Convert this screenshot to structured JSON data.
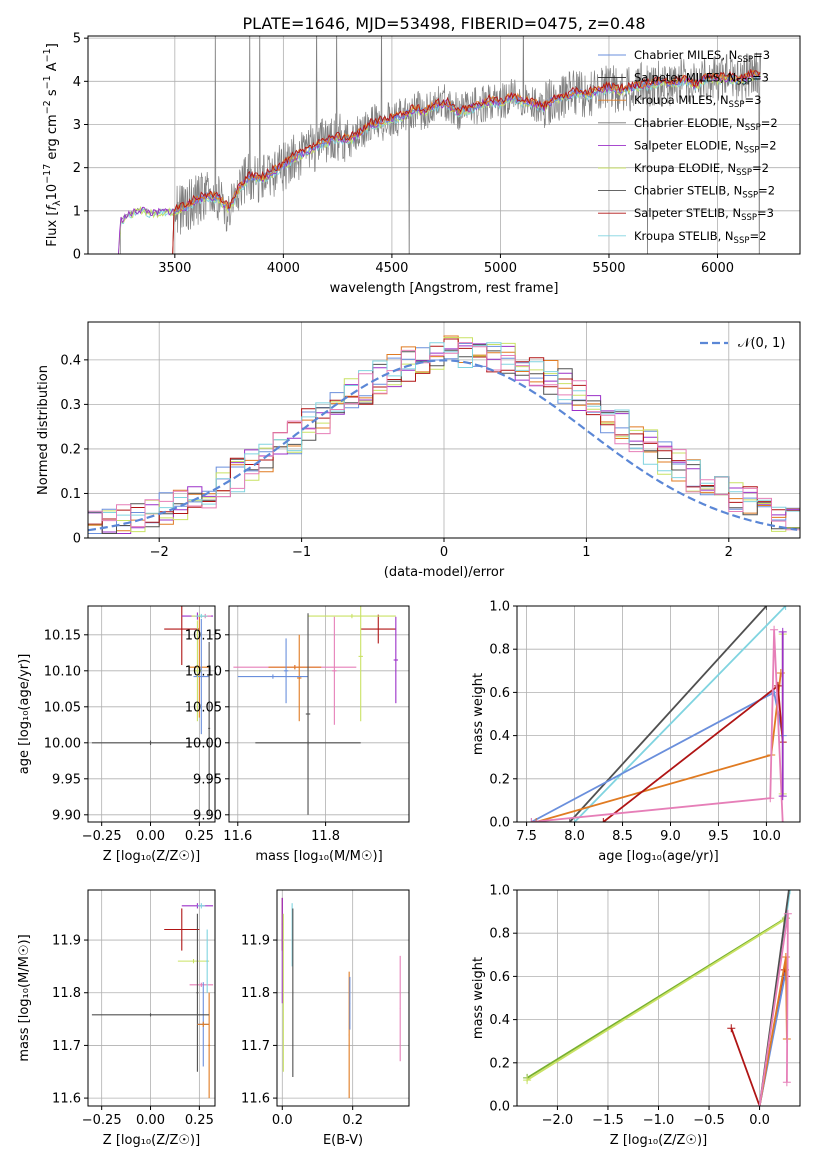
{
  "figure_title": "PLATE=1646, MJD=53498, FIBERID=0475, z=0.48",
  "colors": {
    "Chabrier MILES": "#6a8fdc",
    "Salpeter MILES": "#222222",
    "Kroupa MILES": "#e07b22",
    "Chabrier ELODIE": "#777777",
    "Salpeter ELODIE": "#9b30c8",
    "Kroupa ELODIE": "#c9e264",
    "Chabrier STELIB": "#505050",
    "Salpeter STELIB": "#b01515",
    "Kroupa STELIB": "#80d4e0",
    "pink": "#e67fb8",
    "normal_curve": "#5b87d6",
    "green_line": "#78b030"
  },
  "chart_data": [
    {
      "id": "spectrum",
      "type": "line",
      "title": "PLATE=1646, MJD=53498, FIBERID=0475, z=0.48",
      "xlabel": "wavelength [Angstrom, rest frame]",
      "ylabel_parts": [
        "Flux [",
        "f",
        "λ",
        "10",
        "−17",
        " erg cm",
        "−2",
        " s",
        "−1",
        " A",
        "−1",
        "]"
      ],
      "xlim": [
        3100,
        6380
      ],
      "ylim": [
        0,
        5.05
      ],
      "xticks": [
        3500,
        4000,
        4500,
        5000,
        5500,
        6000
      ],
      "yticks": [
        0,
        1,
        2,
        3,
        4,
        5
      ],
      "legend": [
        {
          "label": "Chabrier MILES, N",
          "sub": "SSP",
          "suffix": "=3",
          "color": "#6a8fdc"
        },
        {
          "label": "Salpeter MILES, N",
          "sub": "SSP",
          "suffix": "=3",
          "color": "#222222"
        },
        {
          "label": "Kroupa MILES, N",
          "sub": "SSP",
          "suffix": "=3",
          "color": "#e07b22"
        },
        {
          "label": "Chabrier ELODIE, N",
          "sub": "SSP",
          "suffix": "=2",
          "color": "#777777"
        },
        {
          "label": "Salpeter ELODIE, N",
          "sub": "SSP",
          "suffix": "=2",
          "color": "#9b30c8"
        },
        {
          "label": "Kroupa ELODIE, N",
          "sub": "SSP",
          "suffix": "=2",
          "color": "#c9e264"
        },
        {
          "label": "Chabrier STELIB, N",
          "sub": "SSP",
          "suffix": "=2",
          "color": "#505050"
        },
        {
          "label": "Salpeter STELIB, N",
          "sub": "SSP",
          "suffix": "=3",
          "color": "#b01515"
        },
        {
          "label": "Kroupa STELIB, N",
          "sub": "SSP",
          "suffix": "=2",
          "color": "#80d4e0"
        }
      ],
      "continuum": {
        "x": [
          3240,
          3250,
          3300,
          3350,
          3400,
          3450,
          3500,
          3550,
          3600,
          3650,
          3700,
          3750,
          3800,
          3850,
          3900,
          3950,
          4000,
          4050,
          4100,
          4150,
          4200,
          4250,
          4300,
          4350,
          4400,
          4450,
          4500,
          4550,
          4600,
          4650,
          4700,
          4750,
          4800,
          4850,
          4900,
          4950,
          5000,
          5050,
          5100,
          5150,
          5200,
          5250,
          5300,
          5350,
          5400,
          5450,
          5500,
          5550,
          5600,
          5650,
          5700,
          5750,
          5800,
          5850,
          5900,
          5950,
          6000,
          6050,
          6100,
          6150,
          6200
        ],
        "y": [
          0,
          0.8,
          0.95,
          1.05,
          0.95,
          1.0,
          1.0,
          1.1,
          1.25,
          1.35,
          1.3,
          1.05,
          1.55,
          1.8,
          1.75,
          1.9,
          2.05,
          2.25,
          2.35,
          2.5,
          2.6,
          2.7,
          2.65,
          2.8,
          3.0,
          3.05,
          3.15,
          3.2,
          3.35,
          3.3,
          3.45,
          3.5,
          3.3,
          3.35,
          3.45,
          3.55,
          3.5,
          3.65,
          3.55,
          3.5,
          3.4,
          3.6,
          3.65,
          3.75,
          3.7,
          3.8,
          3.85,
          3.8,
          3.85,
          3.9,
          3.95,
          4.0,
          3.95,
          4.05,
          3.9,
          4.1,
          4.05,
          4.1,
          4.0,
          4.15,
          4.1
        ]
      }
    },
    {
      "id": "residuals",
      "type": "line",
      "xlabel": "(data-model)/error",
      "ylabel": "Normed distribution",
      "xlim": [
        -2.5,
        2.5
      ],
      "ylim": [
        0,
        0.485
      ],
      "xticks": [
        -2,
        -1,
        0,
        1,
        2
      ],
      "yticks": [
        0.0,
        0.1,
        0.2,
        0.3,
        0.4
      ],
      "legend": [
        {
          "label": "𝒩(0, 1)",
          "color": "#5b87d6",
          "dashed": true
        }
      ],
      "bin_width": 0.1,
      "bin_start": -2.5,
      "histograms": [
        {
          "color": "#6a8fdc",
          "seed": 3
        },
        {
          "color": "#e07b22",
          "seed": 7
        },
        {
          "color": "#9b30c8",
          "seed": 11
        },
        {
          "color": "#c9e264",
          "seed": 13
        },
        {
          "color": "#505050",
          "seed": 17
        },
        {
          "color": "#b01515",
          "seed": 19
        },
        {
          "color": "#80d4e0",
          "seed": 23
        },
        {
          "color": "#e67fb8",
          "seed": 29
        }
      ]
    },
    {
      "id": "age_vs_Z",
      "type": "scatter",
      "xlabel": "Z [log₁₀(Z/Z☉)]",
      "ylabel": "age  [log₁₀(age/yr)]",
      "xlim": [
        -0.32,
        0.33
      ],
      "ylim": [
        9.89,
        10.19
      ],
      "xticks": [
        -0.25,
        0.0,
        0.25
      ],
      "xticklabels": [
        "−0.25",
        "0.00",
        "0.25"
      ],
      "yticks": [
        9.9,
        9.95,
        10.0,
        10.05,
        10.1,
        10.15
      ],
      "yticklabels": [
        "9.90",
        "9.95",
        "10.00",
        "10.05",
        "10.10",
        "10.15"
      ],
      "errorbars": [
        {
          "x": 0.16,
          "y": 10.158,
          "xerr": 0.09,
          "yerr": 0.05,
          "color": "#b01515"
        },
        {
          "x": 0.24,
          "y": 10.176,
          "xerr": 0.08,
          "yerr": 0.005,
          "color": "#9b30c8"
        },
        {
          "x": 0.28,
          "y": 10.176,
          "xerr": 0.03,
          "yerr": 0.003,
          "color": "#e67fb8"
        },
        {
          "x": 0.25,
          "y": 10.176,
          "xerr": 0.04,
          "yerr": 0.003,
          "color": "#c9e264"
        },
        {
          "x": 0.26,
          "y": 10.176,
          "xerr": 0.03,
          "yerr": 0.003,
          "color": "#80d4e0"
        },
        {
          "x": 0.25,
          "y": 10.105,
          "xerr": 0.05,
          "yerr": 0.07,
          "color": "#e07b22"
        },
        {
          "x": 0.26,
          "y": 10.092,
          "xerr": 0.04,
          "yerr": 0.08,
          "color": "#6a8fdc"
        },
        {
          "x": 0.24,
          "y": 10.1,
          "xerr": 0.02,
          "yerr": 0.07,
          "color": "#c9e264"
        },
        {
          "x": 0.0,
          "y": 10.0,
          "xerr": 0.3,
          "yerr": 0.003,
          "color": "#505050"
        },
        {
          "x": 0.3,
          "y": 10.02,
          "xerr": 0.005,
          "yerr": 0.12,
          "color": "#505050"
        }
      ]
    },
    {
      "id": "age_vs_mass",
      "type": "scatter",
      "xlabel": "mass [log₁₀(M/M☉)]",
      "xlim": [
        11.58,
        11.99
      ],
      "ylim": [
        9.89,
        10.19
      ],
      "xticks": [
        11.6,
        11.8
      ],
      "xticklabels": [
        "11.6",
        "11.8"
      ],
      "yticks": [
        9.9,
        9.95,
        10.0,
        10.05,
        10.1,
        10.15
      ],
      "yticklabels": [
        "9.90",
        "9.95",
        "10.00",
        "10.05",
        "10.10",
        "10.15"
      ],
      "errorbars": [
        {
          "x": 11.92,
          "y": 10.158,
          "xerr": 0.04,
          "yerr": 0.02,
          "color": "#b01515"
        },
        {
          "x": 11.86,
          "y": 10.176,
          "xerr": 0.1,
          "yerr": 0.003,
          "color": "#c9e264"
        },
        {
          "x": 11.96,
          "y": 10.115,
          "xerr": 0.005,
          "yerr": 0.06,
          "color": "#9b30c8"
        },
        {
          "x": 11.88,
          "y": 10.12,
          "xerr": 0.005,
          "yerr": 0.09,
          "color": "#c9e264"
        },
        {
          "x": 11.73,
          "y": 10.105,
          "xerr": 0.14,
          "yerr": 0.003,
          "color": "#e67fb8"
        },
        {
          "x": 11.73,
          "y": 10.105,
          "xerr": 0.06,
          "yerr": 0.003,
          "color": "#e07b22"
        },
        {
          "x": 11.74,
          "y": 10.09,
          "xerr": 0.005,
          "yerr": 0.06,
          "color": "#e07b22"
        },
        {
          "x": 11.68,
          "y": 10.092,
          "xerr": 0.08,
          "yerr": 0.003,
          "color": "#6a8fdc"
        },
        {
          "x": 11.71,
          "y": 10.1,
          "xerr": 0.005,
          "yerr": 0.045,
          "color": "#6a8fdc"
        },
        {
          "x": 11.76,
          "y": 10.04,
          "xerr": 0.005,
          "yerr": 0.14,
          "color": "#505050"
        },
        {
          "x": 11.76,
          "y": 10.0,
          "xerr": 0.12,
          "yerr": 0.003,
          "color": "#505050"
        },
        {
          "x": 11.82,
          "y": 10.1,
          "xerr": 0.005,
          "yerr": 0.075,
          "color": "#e67fb8"
        }
      ]
    },
    {
      "id": "mass_weight_vs_age",
      "type": "line",
      "xlabel": "age  [log₁₀(age/yr)]",
      "ylabel": "mass weight",
      "xlim": [
        7.4,
        10.35
      ],
      "ylim": [
        0,
        1.0
      ],
      "xticks": [
        7.5,
        8.0,
        8.5,
        9.0,
        9.5,
        10.0
      ],
      "xticklabels": [
        "7.5",
        "8.0",
        "8.5",
        "9.0",
        "9.5",
        "10.0"
      ],
      "yticks": [
        0.0,
        0.2,
        0.4,
        0.6,
        0.8,
        1.0
      ],
      "yticklabels": [
        "0.0",
        "0.2",
        "0.4",
        "0.6",
        "0.8",
        "1.0"
      ],
      "series": [
        {
          "color": "#505050",
          "x": [
            7.95,
            10.0
          ],
          "y": [
            0.0,
            1.0
          ]
        },
        {
          "color": "#80d4e0",
          "x": [
            8.0,
            10.2
          ],
          "y": [
            0.0,
            1.0
          ]
        },
        {
          "color": "#6a8fdc",
          "x": [
            7.55,
            10.08,
            10.17
          ],
          "y": [
            0.0,
            0.6,
            0.4
          ]
        },
        {
          "color": "#e07b22",
          "x": [
            7.6,
            10.05,
            10.15
          ],
          "y": [
            0.0,
            0.31,
            0.69
          ]
        },
        {
          "color": "#b01515",
          "x": [
            8.3,
            10.12,
            10.17
          ],
          "y": [
            0.0,
            0.63,
            0.37
          ]
        },
        {
          "color": "#e67fb8",
          "x": [
            7.55,
            10.04,
            10.08,
            10.17
          ],
          "y": [
            0.0,
            0.11,
            0.89,
            0.0
          ]
        },
        {
          "color": "#c9e264",
          "x": [
            10.17,
            10.17
          ],
          "y": [
            0.13,
            0.87
          ]
        },
        {
          "color": "#9b30c8",
          "x": [
            10.17,
            10.17
          ],
          "y": [
            0.12,
            0.88
          ]
        }
      ]
    },
    {
      "id": "mass_vs_Z",
      "type": "scatter",
      "xlabel": "Z [log₁₀(Z/Z☉)]",
      "ylabel": "mass [log₁₀(M/M☉)]",
      "xlim": [
        -0.32,
        0.33
      ],
      "ylim": [
        11.585,
        11.995
      ],
      "xticks": [
        -0.25,
        0.0,
        0.25
      ],
      "xticklabels": [
        "−0.25",
        "0.00",
        "0.25"
      ],
      "yticks": [
        11.6,
        11.7,
        11.8,
        11.9
      ],
      "yticklabels": [
        "11.6",
        "11.7",
        "11.8",
        "11.9"
      ],
      "errorbars": [
        {
          "x": 0.16,
          "y": 11.92,
          "xerr": 0.09,
          "yerr": 0.04,
          "color": "#b01515"
        },
        {
          "x": 0.24,
          "y": 11.965,
          "xerr": 0.08,
          "yerr": 0.005,
          "color": "#9b30c8"
        },
        {
          "x": 0.26,
          "y": 11.965,
          "xerr": 0.02,
          "yerr": 0.005,
          "color": "#80d4e0"
        },
        {
          "x": 0.22,
          "y": 11.86,
          "xerr": 0.08,
          "yerr": 0.004,
          "color": "#c9e264"
        },
        {
          "x": 0.26,
          "y": 11.815,
          "xerr": 0.06,
          "yerr": 0.004,
          "color": "#e67fb8"
        },
        {
          "x": 0.24,
          "y": 11.8,
          "xerr": 0.005,
          "yerr": 0.15,
          "color": "#505050"
        },
        {
          "x": 0.27,
          "y": 11.74,
          "xerr": 0.03,
          "yerr": 0.08,
          "color": "#6a8fdc"
        },
        {
          "x": 0.27,
          "y": 11.74,
          "xerr": 0.03,
          "yerr": 0.005,
          "color": "#e07b22"
        },
        {
          "x": 0.3,
          "y": 11.7,
          "xerr": 0.005,
          "yerr": 0.1,
          "color": "#e07b22"
        },
        {
          "x": 0.0,
          "y": 11.758,
          "xerr": 0.3,
          "yerr": 0.003,
          "color": "#505050"
        },
        {
          "x": 0.29,
          "y": 11.86,
          "xerr": 0.005,
          "yerr": 0.06,
          "color": "#80d4e0"
        }
      ]
    },
    {
      "id": "mass_vs_EBV",
      "type": "scatter",
      "xlabel": "E(B-V)",
      "xlim": [
        -0.015,
        0.36
      ],
      "ylim": [
        11.585,
        11.995
      ],
      "xticks": [
        0.0,
        0.2
      ],
      "xticklabels": [
        "0.0",
        "0.2"
      ],
      "yticks": [
        11.6,
        11.7,
        11.8,
        11.9
      ],
      "yticklabels": [
        "11.6",
        "11.7",
        "11.8",
        "11.9"
      ],
      "errorbars": [
        {
          "x": 0.0,
          "y": 11.93,
          "xerr": 0.001,
          "yerr": 0.05,
          "color": "#b01515"
        },
        {
          "x": 0.0,
          "y": 11.88,
          "xerr": 0.001,
          "yerr": 0.1,
          "color": "#9b30c8"
        },
        {
          "x": 0.003,
          "y": 11.8,
          "xerr": 0.001,
          "yerr": 0.15,
          "color": "#c9e264"
        },
        {
          "x": 0.028,
          "y": 11.91,
          "xerr": 0.001,
          "yerr": 0.06,
          "color": "#80d4e0"
        },
        {
          "x": 0.03,
          "y": 11.8,
          "xerr": 0.001,
          "yerr": 0.16,
          "color": "#505050"
        },
        {
          "x": 0.19,
          "y": 11.72,
          "xerr": 0.001,
          "yerr": 0.12,
          "color": "#e07b22"
        },
        {
          "x": 0.192,
          "y": 11.78,
          "xerr": 0.001,
          "yerr": 0.05,
          "color": "#6a8fdc"
        },
        {
          "x": 0.335,
          "y": 11.77,
          "xerr": 0.001,
          "yerr": 0.1,
          "color": "#e67fb8"
        }
      ]
    },
    {
      "id": "mass_weight_vs_Z",
      "type": "line",
      "xlabel": "Z [log₁₀(Z/Z☉)]",
      "ylabel": "mass weight",
      "xlim": [
        -2.4,
        0.4
      ],
      "ylim": [
        0,
        1.0
      ],
      "xticks": [
        -2.0,
        -1.5,
        -1.0,
        -0.5,
        0.0
      ],
      "xticklabels": [
        "−2.0",
        "−1.5",
        "−1.0",
        "−0.5",
        "0.0"
      ],
      "yticks": [
        0.0,
        0.2,
        0.4,
        0.6,
        0.8,
        1.0
      ],
      "yticklabels": [
        "0.0",
        "0.2",
        "0.4",
        "0.6",
        "0.8",
        "1.0"
      ],
      "series": [
        {
          "color": "#78b030",
          "x": [
            -2.3,
            0.26
          ],
          "y": [
            0.13,
            0.87
          ]
        },
        {
          "color": "#c9e264",
          "x": [
            -2.3,
            0.24
          ],
          "y": [
            0.12,
            0.86
          ]
        },
        {
          "color": "#b01515",
          "x": [
            -0.28,
            0.0,
            0.25,
            0.26
          ],
          "y": [
            0.36,
            0.0,
            0.63,
            0.6
          ]
        },
        {
          "color": "#80d4e0",
          "x": [
            0.0,
            0.3
          ],
          "y": [
            0.0,
            1.0
          ]
        },
        {
          "color": "#505050",
          "x": [
            0.0,
            0.29
          ],
          "y": [
            0.0,
            1.0
          ]
        },
        {
          "color": "#6a8fdc",
          "x": [
            0.0,
            0.25
          ],
          "y": [
            0.0,
            0.6
          ]
        },
        {
          "color": "#e07b22",
          "x": [
            0.0,
            0.26,
            0.27
          ],
          "y": [
            0.0,
            0.69,
            0.31
          ]
        },
        {
          "color": "#e67fb8",
          "x": [
            0.0,
            0.28,
            0.27
          ],
          "y": [
            0.0,
            0.89,
            0.11
          ]
        }
      ]
    }
  ]
}
